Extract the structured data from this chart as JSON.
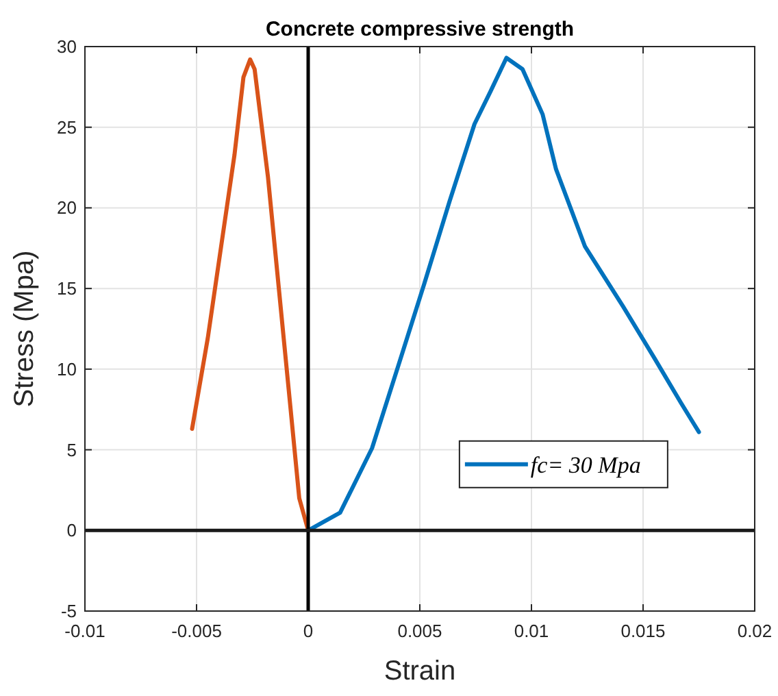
{
  "chart_data": {
    "type": "line",
    "title": "Concrete compressive strength",
    "xlabel": "Strain",
    "ylabel": "Stress (Mpa)",
    "xlim": [
      -0.01,
      0.02
    ],
    "xticks": [
      -0.01,
      -0.005,
      0,
      0.005,
      0.01,
      0.015,
      0.02
    ],
    "ylim": [
      -5,
      30
    ],
    "yticks": [
      -5,
      0,
      5,
      10,
      15,
      20,
      25,
      30
    ],
    "grid": true,
    "legend": "right",
    "line_style": "solid",
    "marker": "none",
    "ref_lines": [
      {
        "axis": "x",
        "value": 0,
        "color": "#000000"
      },
      {
        "axis": "y",
        "value": 0,
        "color": "#1a1a1a"
      }
    ],
    "series": [
      {
        "name": "fc= 30 Mpa",
        "color": "#0072bd",
        "x": [
          0,
          0.00143,
          0.00286,
          0.00408,
          0.0052,
          0.00633,
          0.00745,
          0.00816,
          0.00888,
          0.0096,
          0.0105,
          0.0111,
          0.0124,
          0.0141,
          0.0155,
          0.0167,
          0.0175
        ],
        "values": [
          0,
          1.1,
          5.1,
          10.4,
          15.3,
          20.4,
          25.2,
          27.2,
          29.3,
          28.6,
          25.8,
          22.4,
          17.6,
          13.9,
          10.7,
          7.9,
          6.1
        ]
      },
      {
        "color": "#d95319",
        "x": [
          -0.0052,
          -0.0045,
          -0.0039,
          -0.0033,
          -0.0029,
          -0.0026,
          -0.0024,
          -0.0018,
          -0.0013,
          -0.0008,
          -0.0004,
          0
        ],
        "values": [
          6.3,
          11.9,
          17.6,
          23.3,
          28.1,
          29.2,
          28.6,
          21.9,
          14.8,
          7.7,
          2,
          0
        ]
      }
    ]
  }
}
